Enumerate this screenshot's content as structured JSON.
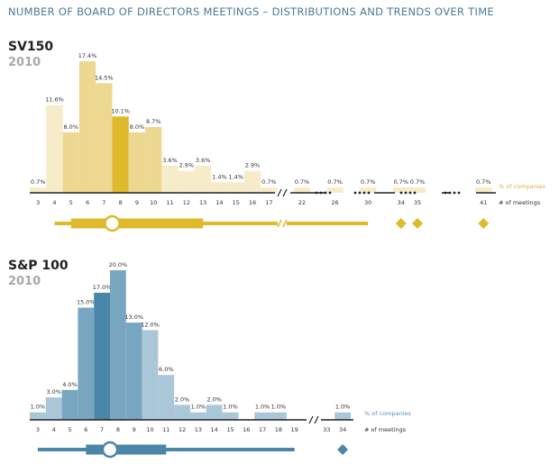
{
  "title": "NUMBER OF BOARD OF DIRECTORS MEETINGS – DISTRIBUTIONS AND TRENDS OVER TIME",
  "chart_data": [
    {
      "type": "bar",
      "name": "SV150",
      "year": "2010",
      "value_label": "% of companies",
      "axis_label": "# of meetings",
      "colors": {
        "light": "#f6ecc9",
        "mid": "#edd891",
        "dark": "#e6c345",
        "darkest": "#dfb92c",
        "text": "#d7b43a"
      },
      "categories": [
        "3",
        "4",
        "5",
        "6",
        "7",
        "8",
        "9",
        "10",
        "11",
        "12",
        "13",
        "14",
        "15",
        "16",
        "17",
        "22",
        "26",
        "30",
        "34",
        "35",
        "41"
      ],
      "values": [
        0.7,
        11.6,
        8.0,
        17.4,
        14.5,
        10.1,
        8.0,
        8.7,
        3.6,
        2.9,
        3.6,
        1.4,
        1.4,
        2.9,
        0.7,
        0.7,
        0.7,
        0.7,
        0.7,
        0.7,
        0.7
      ],
      "labels": [
        "0.7%",
        "11.6%",
        "8.0%",
        "17.4%",
        "14.5%",
        "10.1%",
        "8.0%",
        "8.7%",
        "3.6%",
        "2.9%",
        "3.6%",
        "1.4%",
        "1.4%",
        "2.9%",
        "0.7%",
        "0.7%",
        "0.7%",
        "0.7%",
        "0.7%",
        "0.7%",
        "0.7%"
      ],
      "shades": [
        "light",
        "light",
        "mid",
        "mid",
        "mid",
        "darkest",
        "mid",
        "mid",
        "light",
        "light",
        "light",
        "light",
        "light",
        "light",
        "light",
        "light",
        "light",
        "light",
        "light",
        "light",
        "light"
      ],
      "axis_breaks": [
        "after 17",
        "after 22",
        "after 26",
        "after 30",
        "after 35"
      ],
      "boxplot": {
        "whisker_low": 4,
        "q1": 5,
        "median": 7.5,
        "q3": 13,
        "whisker_high": 30,
        "outliers": [
          34,
          35,
          41
        ]
      }
    },
    {
      "type": "bar",
      "name": "S&P 100",
      "year": "2010",
      "value_label": "% of companies",
      "axis_label": "# of meetings",
      "colors": {
        "light": "#aac7da",
        "mid": "#78a6c1",
        "dark": "#4a86a7",
        "darkest": "#4a86a7",
        "text": "#5a91b2"
      },
      "categories": [
        "3",
        "4",
        "5",
        "6",
        "7",
        "8",
        "9",
        "10",
        "11",
        "12",
        "13",
        "14",
        "15",
        "16",
        "17",
        "18",
        "19",
        "33",
        "34"
      ],
      "values": [
        1.0,
        3.0,
        4.0,
        15.0,
        17.0,
        20.0,
        13.0,
        12.0,
        6.0,
        2.0,
        1.0,
        2.0,
        1.0,
        0.0,
        1.0,
        1.0,
        0.0,
        0.0,
        1.0
      ],
      "labels": [
        "1.0%",
        "3.0%",
        "4.0%",
        "15.0%",
        "17.0%",
        "20.0%",
        "13.0%",
        "12.0%",
        "6.0%",
        "2.0%",
        "1.0%",
        "2.0%",
        "1.0%",
        "",
        "1.0%",
        "1.0%",
        "",
        "",
        "1.0%"
      ],
      "shades": [
        "light",
        "light",
        "mid",
        "mid",
        "dark",
        "mid",
        "mid",
        "light",
        "light",
        "light",
        "light",
        "light",
        "light",
        "light",
        "light",
        "light",
        "light",
        "light",
        "light"
      ],
      "axis_breaks": [
        "after 19"
      ],
      "boxplot": {
        "whisker_low": 3,
        "q1": 6,
        "median": 7.5,
        "q3": 11,
        "whisker_high": 19,
        "outliers": [
          34
        ]
      }
    }
  ]
}
